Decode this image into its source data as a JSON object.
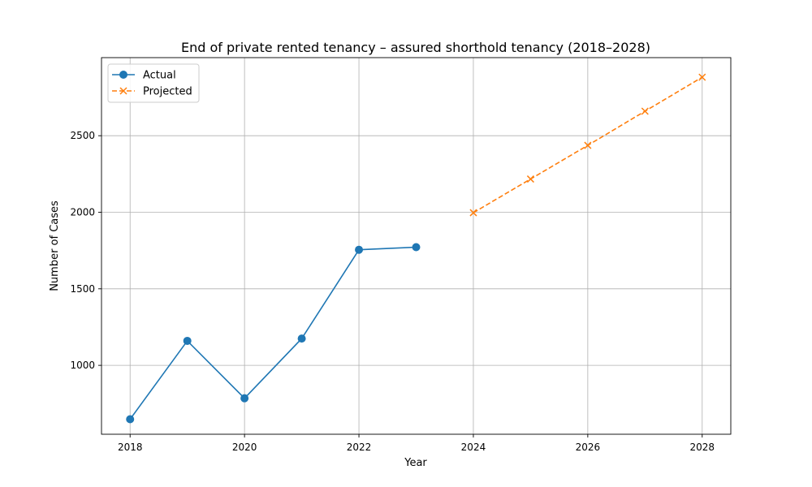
{
  "chart_data": {
    "type": "line",
    "title": "End of private rented tenancy – assured shorthold tenancy (2018–2028)",
    "xlabel": "Year",
    "ylabel": "Number of Cases",
    "xlim": [
      2017.5,
      2028.5
    ],
    "ylim": [
      550,
      3010
    ],
    "x_ticks": [
      2018,
      2020,
      2022,
      2024,
      2026,
      2028
    ],
    "y_ticks": [
      1000,
      1500,
      2000,
      2500
    ],
    "grid": true,
    "legend_position": "top-left",
    "series": [
      {
        "name": "Actual",
        "color": "#1f77b4",
        "line_style": "solid",
        "marker": "circle",
        "x": [
          2018,
          2019,
          2020,
          2021,
          2022,
          2023
        ],
        "y": [
          648,
          1160,
          785,
          1175,
          1755,
          1772
        ]
      },
      {
        "name": "Projected",
        "color": "#ff7f0e",
        "line_style": "dashed",
        "marker": "x",
        "x": [
          2024,
          2025,
          2026,
          2027,
          2028
        ],
        "y": [
          1997,
          2217,
          2437,
          2660,
          2882
        ]
      }
    ]
  }
}
